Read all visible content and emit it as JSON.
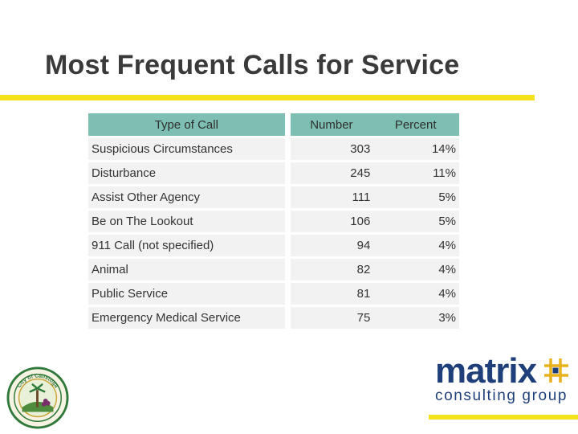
{
  "slide": {
    "title": "Most Frequent Calls for Service"
  },
  "table": {
    "headers": {
      "type": "Type of Call",
      "number": "Number",
      "percent": "Percent"
    },
    "rows": [
      {
        "type": "Suspicious Circumstances",
        "number": "303",
        "percent": "14%"
      },
      {
        "type": "Disturbance",
        "number": "245",
        "percent": "11%"
      },
      {
        "type": "Assist Other Agency",
        "number": "111",
        "percent": "5%"
      },
      {
        "type": "Be on The Lookout",
        "number": "106",
        "percent": "5%"
      },
      {
        "type": "911 Call (not specified)",
        "number": "94",
        "percent": "4%"
      },
      {
        "type": "Animal",
        "number": "82",
        "percent": "4%"
      },
      {
        "type": "Public Service",
        "number": "81",
        "percent": "4%"
      },
      {
        "type": "Emergency Medical Service",
        "number": "75",
        "percent": "3%"
      }
    ]
  },
  "branding": {
    "logo_word": "matrix",
    "logo_sub": "consulting group",
    "seal_text": "City of Calistoga",
    "colors": {
      "accent_yellow": "#f4e21c",
      "header_teal": "#7ebfb3",
      "logo_navy": "#1f3f7a",
      "logo_gold": "#e8b21c",
      "seal_green": "#2f7a3a"
    }
  }
}
